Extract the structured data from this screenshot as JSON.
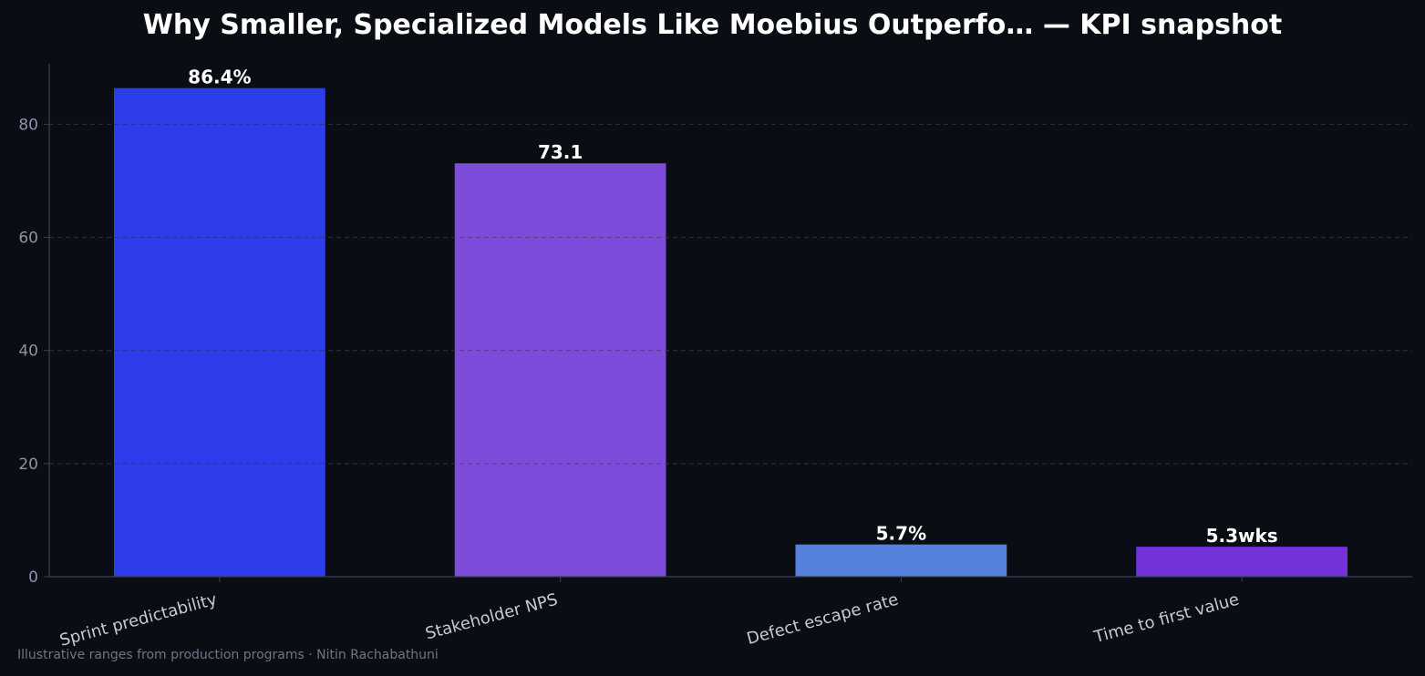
{
  "chart_data": {
    "type": "bar",
    "title": "Why Smaller, Specialized Models Like Moebius Outperfo… — KPI snapshot",
    "categories": [
      "Sprint predictability",
      "Stakeholder NPS",
      "Defect escape rate",
      "Time to first value"
    ],
    "values": [
      86.4,
      73.1,
      5.7,
      5.3
    ],
    "value_labels": [
      "86.4%",
      "73.1",
      "5.7%",
      "5.3wks"
    ],
    "bar_colors": [
      "#2d3deb",
      "#7e4cdb",
      "#5682de",
      "#7332d9"
    ],
    "xlabel": "",
    "ylabel": "",
    "ylim": [
      0,
      90.7
    ],
    "yticks": [
      0,
      20,
      40,
      60,
      80
    ],
    "grid": true,
    "legend": "none"
  },
  "footer": {
    "caption": "Illustrative ranges from production programs · Nitin Rachabathuni"
  },
  "colors": {
    "background": "#0a0d14",
    "axis": "#3a4150",
    "grid": "#2a2f3d",
    "tick_label": "#8a94a8",
    "category_label": "#c5cad6",
    "value_label": "#ffffff"
  }
}
